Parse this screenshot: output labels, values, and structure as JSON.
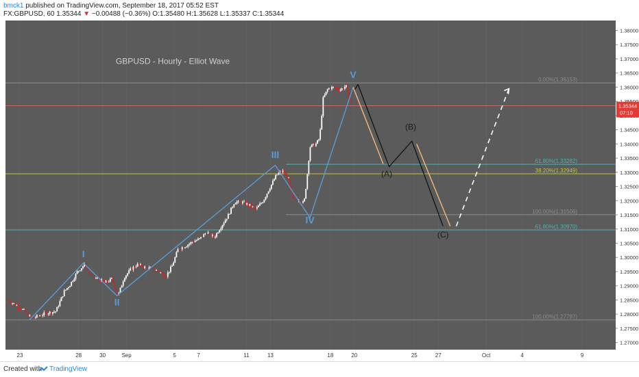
{
  "header": {
    "author": "bmck1",
    "published": "published on TradingView.com, September 18, 2017 05:52 EST",
    "symbol": "FX:GBPUSD, 60",
    "last": "1.35344",
    "change_arrow": "▼",
    "change": "−0.00488 (−0.36%)",
    "o_label": "O:",
    "o": "1.35480",
    "h_label": "H:",
    "h": "1.35628",
    "l_label": "L:",
    "l": "1.35337",
    "c_label": "C:",
    "c": "1.35344"
  },
  "footer": {
    "created_with": "Created with",
    "brand": "TradingView"
  },
  "colors": {
    "background": "#5b5b5b",
    "up_candle": "#ffffff",
    "down_candle": "#c62828",
    "wave_line": "#5b9bd5",
    "projection_black": "#111111",
    "projection_orange": "#f0b27a",
    "projection_white": "#ffffff",
    "fib_green": "#4db6ac",
    "fib_yellow": "#c0ca33",
    "fib_gray": "#8d8d8d",
    "price_line": "#e57373"
  },
  "chart_data": {
    "type": "candlestick",
    "title": "GBPUSD - Hourly - Elliot Wave",
    "y_ticks": [
      "1.38000",
      "1.37500",
      "1.37000",
      "1.36500",
      "1.36000",
      "1.35500",
      "1.35000",
      "1.34500",
      "1.34000",
      "1.33500",
      "1.33000",
      "1.32500",
      "1.32000",
      "1.31500",
      "1.31000",
      "1.30500",
      "1.30000",
      "1.29500",
      "1.29000",
      "1.28500",
      "1.28000",
      "1.27500",
      "1.27000"
    ],
    "ylim": [
      1.2675,
      1.3835
    ],
    "x_ticks": [
      "23",
      "28",
      "30",
      "Sep",
      "5",
      "7",
      "11",
      "13",
      "18",
      "20",
      "25",
      "27",
      "Oct",
      "4",
      "9"
    ],
    "x_tick_days": [
      -8.9,
      -4.0,
      -2.0,
      0.0,
      4.0,
      6.0,
      10.0,
      12.0,
      17.0,
      19.0,
      24.0,
      26.0,
      30.0,
      33.0,
      38.0
    ],
    "x_range_days": [
      -10.1,
      40.8
    ],
    "price_marker": {
      "value": 1.35344,
      "label": "1.35344",
      "countdown": "07:10"
    },
    "price_path": [
      [
        -10.0,
        1.285
      ],
      [
        -9.3,
        1.2835
      ],
      [
        -8.5,
        1.281
      ],
      [
        -7.9,
        1.2785
      ],
      [
        -7.3,
        1.2795
      ],
      [
        -6.6,
        1.2805
      ],
      [
        -5.9,
        1.281
      ],
      [
        -5.2,
        1.288
      ],
      [
        -4.7,
        1.2905
      ],
      [
        -4.1,
        1.295
      ],
      [
        -3.5,
        1.2975
      ],
      [
        -2.9,
        1.293
      ],
      [
        -2.4,
        1.2925
      ],
      [
        -1.8,
        1.291
      ],
      [
        -1.2,
        1.2925
      ],
      [
        -0.7,
        1.2865
      ],
      [
        -0.2,
        1.293
      ],
      [
        0.4,
        1.296
      ],
      [
        0.9,
        1.2975
      ],
      [
        1.5,
        1.2965
      ],
      [
        2.1,
        1.296
      ],
      [
        2.7,
        1.295
      ],
      [
        3.3,
        1.2935
      ],
      [
        3.8,
        1.297
      ],
      [
        4.3,
        1.303
      ],
      [
        4.9,
        1.304
      ],
      [
        5.5,
        1.3055
      ],
      [
        6.1,
        1.3065
      ],
      [
        6.7,
        1.309
      ],
      [
        7.3,
        1.307
      ],
      [
        7.9,
        1.311
      ],
      [
        8.5,
        1.315
      ],
      [
        9.0,
        1.3195
      ],
      [
        9.6,
        1.3195
      ],
      [
        10.2,
        1.3185
      ],
      [
        10.8,
        1.317
      ],
      [
        11.4,
        1.32
      ],
      [
        12.0,
        1.325
      ],
      [
        12.5,
        1.329
      ],
      [
        13.0,
        1.3305
      ],
      [
        13.5,
        1.328
      ],
      [
        13.9,
        1.32
      ],
      [
        14.4,
        1.3205
      ],
      [
        14.8,
        1.319
      ],
      [
        15.0,
        1.326
      ],
      [
        15.3,
        1.339
      ],
      [
        15.8,
        1.34
      ],
      [
        16.1,
        1.342
      ],
      [
        16.4,
        1.356
      ],
      [
        16.8,
        1.3595
      ],
      [
        17.3,
        1.36
      ],
      [
        17.8,
        1.359
      ],
      [
        18.3,
        1.3605
      ],
      [
        18.6,
        1.356
      ],
      [
        18.9,
        1.3534
      ]
    ],
    "waves": {
      "line": [
        [
          -8.1,
          1.278
        ],
        [
          -3.6,
          1.298
        ],
        [
          -0.8,
          1.2865
        ],
        [
          12.4,
          1.3325
        ],
        [
          15.3,
          1.314
        ],
        [
          18.9,
          1.36
        ]
      ],
      "labels": [
        {
          "text": "I",
          "day": -3.6,
          "price": 1.3
        },
        {
          "text": "II",
          "day": -0.8,
          "price": 1.283
        },
        {
          "text": "III",
          "day": 12.4,
          "price": 1.335
        },
        {
          "text": "IV",
          "day": 15.3,
          "price": 1.312
        },
        {
          "text": "V",
          "day": 18.9,
          "price": 1.3632
        }
      ]
    },
    "projection": {
      "black_path": [
        [
          19.3,
          1.361
        ],
        [
          21.9,
          1.332
        ],
        [
          23.8,
          1.341
        ],
        [
          26.4,
          1.311
        ]
      ],
      "black_head": [
        [
          19.3,
          1.361
        ],
        [
          19.0,
          1.359
        ]
      ],
      "orange_segments": [
        [
          [
            18.9,
            1.36
          ],
          [
            21.4,
            1.333
          ]
        ],
        [
          [
            24.2,
            1.34
          ],
          [
            27.0,
            1.311
          ]
        ]
      ],
      "white_dashed": [
        [
          27.5,
          1.311
        ],
        [
          31.9,
          1.3595
        ]
      ],
      "labels": [
        {
          "text": "(A)",
          "day": 21.7,
          "price": 1.3285
        },
        {
          "text": "(B)",
          "day": 23.7,
          "price": 1.345
        },
        {
          "text": "(C)",
          "day": 26.4,
          "price": 1.307
        }
      ]
    },
    "fib_lines": [
      {
        "label": "0.00%(1.36153)",
        "value": 1.36153,
        "color": "#8d8d8d",
        "x_start": -10.1
      },
      {
        "label": "61.80%(1.33282)",
        "value": 1.33282,
        "color": "#4db6ac",
        "x_start": 13.3
      },
      {
        "label": "38.20%(1.32949)",
        "value": 1.32949,
        "color": "#c0ca33",
        "x_start": -10.1
      },
      {
        "label": "100.00%(1.31506)",
        "value": 1.31506,
        "color": "#8d8d8d",
        "x_start": 13.3
      },
      {
        "label": "61.80%(1.30970)",
        "value": 1.3097,
        "color": "#4db6ac",
        "x_start": -10.1
      },
      {
        "label": "100.00%(1.27797)",
        "value": 1.27797,
        "color": "#8d8d8d",
        "x_start": -10.1
      }
    ],
    "reference_lines": [
      {
        "value": 1.35344,
        "color": "#e57373"
      }
    ]
  }
}
